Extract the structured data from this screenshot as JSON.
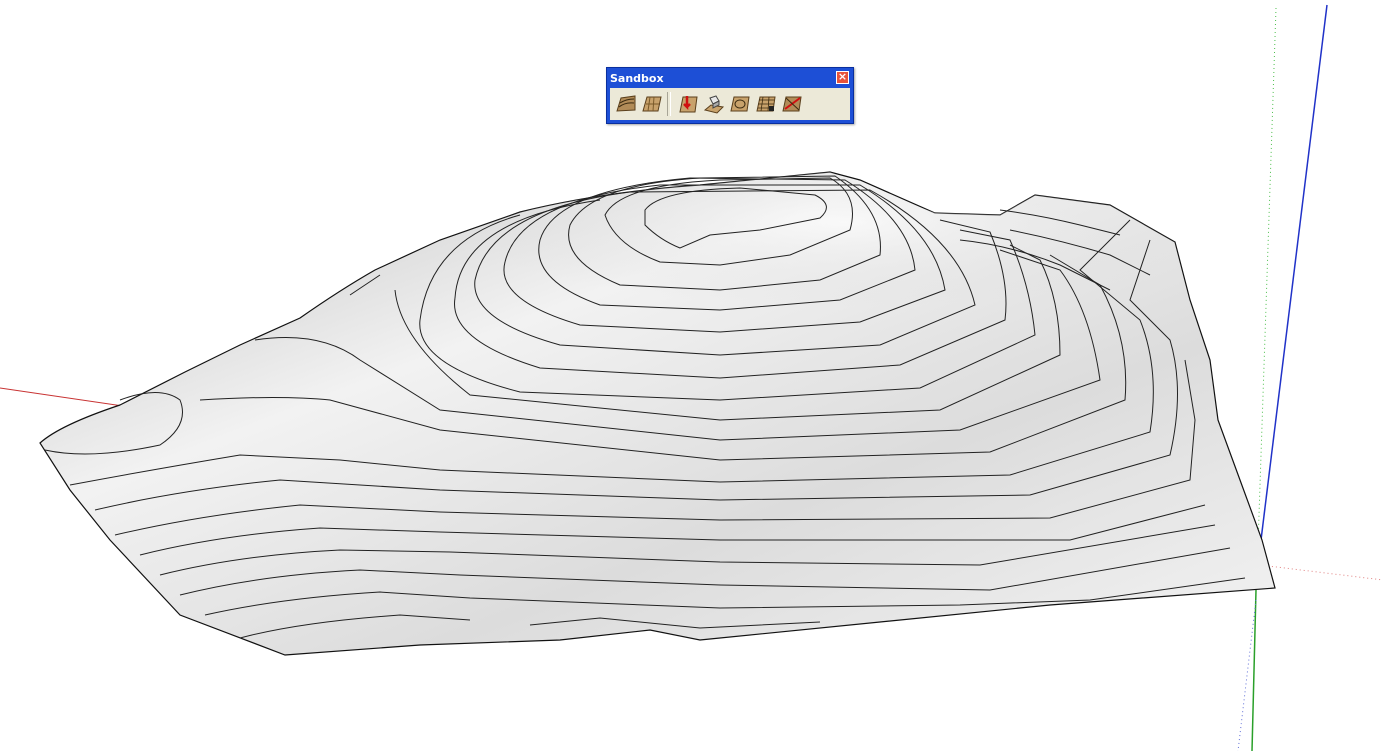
{
  "window": {
    "background": "#ffffff"
  },
  "axes": {
    "red": "#c83232",
    "green": "#2aa02a",
    "blue": "#2032c8"
  },
  "toolbar": {
    "title": "Sandbox",
    "close_icon": "close-icon",
    "title_bar_color": "#1d4fd6",
    "groups": [
      [
        "from-contours-icon",
        "from-scratch-icon"
      ],
      [
        "smoove-icon",
        "stamp-icon",
        "drape-icon",
        "add-detail-icon",
        "flip-edge-icon"
      ]
    ]
  },
  "terrain": {
    "fill": "#efefef",
    "contour_color": "#222222",
    "shading": "gray-gradient"
  }
}
